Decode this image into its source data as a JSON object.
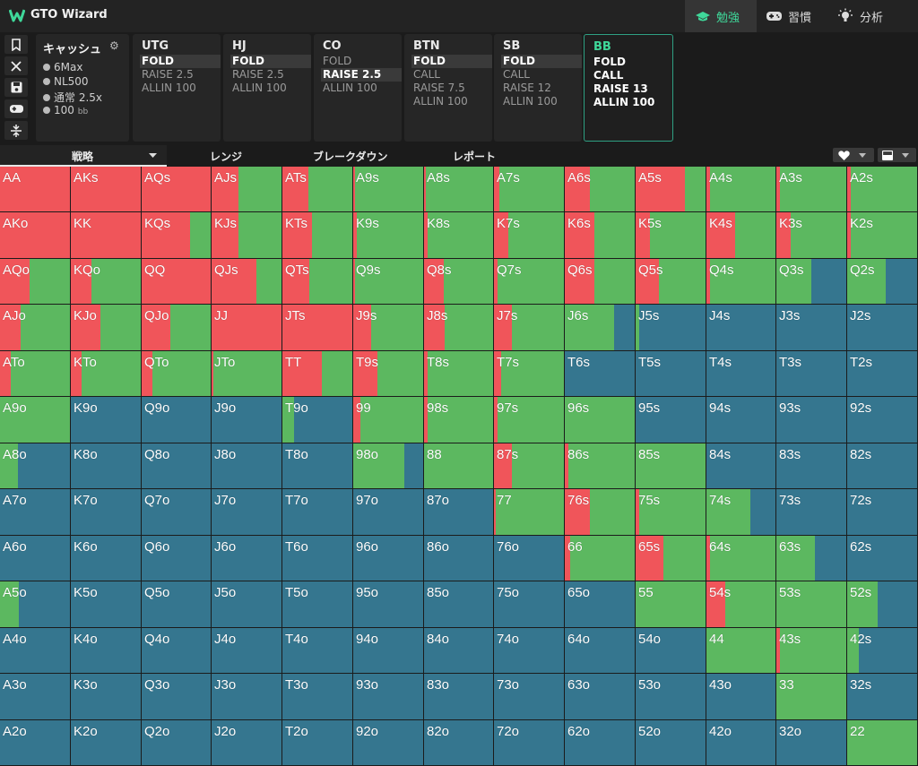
{
  "app": {
    "title": "GTO Wizard",
    "nav": [
      {
        "label": "勉強",
        "icon": "graduation-cap-icon"
      },
      {
        "label": "習慣",
        "icon": "gamepad-icon"
      },
      {
        "label": "分析",
        "icon": "lightbulb-icon"
      }
    ]
  },
  "tools": [
    "bookmark-icon",
    "close-icon",
    "save-icon",
    "gamepad-icon",
    "split-icon"
  ],
  "game": {
    "title": "キャッシュ",
    "rows": [
      {
        "text": "6Max",
        "suffix": ""
      },
      {
        "text": "NL500",
        "suffix": ""
      },
      {
        "text": "通常 2.5x",
        "suffix": ""
      },
      {
        "text": "100",
        "suffix": "bb"
      }
    ]
  },
  "positions": [
    {
      "name": "UTG",
      "actions": [
        "FOLD",
        "RAISE 2.5",
        "ALLIN 100"
      ],
      "selected": 0
    },
    {
      "name": "HJ",
      "actions": [
        "FOLD",
        "RAISE 2.5",
        "ALLIN 100"
      ],
      "selected": 0
    },
    {
      "name": "CO",
      "actions": [
        "FOLD",
        "RAISE 2.5",
        "ALLIN 100"
      ],
      "selected": 1
    },
    {
      "name": "BTN",
      "actions": [
        "FOLD",
        "CALL",
        "RAISE 7.5",
        "ALLIN 100"
      ],
      "selected": 0
    },
    {
      "name": "SB",
      "actions": [
        "FOLD",
        "CALL",
        "RAISE 12",
        "ALLIN 100"
      ],
      "selected": 0
    },
    {
      "name": "BB",
      "actions": [
        "FOLD",
        "CALL",
        "RAISE 13",
        "ALLIN 100"
      ],
      "selected": -1,
      "active": true
    }
  ],
  "tabs": {
    "strategy": "戦略",
    "range": "レンジ",
    "breakdown": "ブレークダウン",
    "report": "レポート"
  },
  "colors": {
    "fold": "#35768f",
    "call": "#5cb860",
    "raise": "#f0555a",
    "accent": "#3fd89a"
  },
  "grid": {
    "ranks": [
      "A",
      "K",
      "Q",
      "J",
      "T",
      "9",
      "8",
      "7",
      "6",
      "5",
      "4",
      "3",
      "2"
    ],
    "strategy_order": [
      "raise",
      "call",
      "fold"
    ],
    "strategy": [
      [
        [
          1,
          0
        ],
        [
          1,
          0
        ],
        [
          1,
          0
        ],
        [
          0.39,
          0.61
        ],
        [
          0.37,
          0.63
        ],
        [
          0.03,
          0.97
        ],
        [
          0.03,
          0.97
        ],
        [
          0.08,
          0.92
        ],
        [
          0.36,
          0.64
        ],
        [
          0.7,
          0.3
        ],
        [
          0.05,
          0.95
        ],
        [
          0.05,
          0.95
        ],
        [
          0.05,
          0.95
        ]
      ],
      [
        [
          1,
          0
        ],
        [
          1,
          0
        ],
        [
          0.7,
          0.3
        ],
        [
          0.39,
          0.61
        ],
        [
          0.42,
          0.58
        ],
        [
          0.05,
          0.95
        ],
        [
          0.05,
          0.95
        ],
        [
          0.21,
          0.79
        ],
        [
          0.42,
          0.58
        ],
        [
          0.2,
          0.8
        ],
        [
          0.42,
          0.58
        ],
        [
          0.2,
          0.8
        ],
        [
          0.05,
          0.95
        ]
      ],
      [
        [
          0.42,
          0.58
        ],
        [
          0.29,
          0.71
        ],
        [
          1,
          0
        ],
        [
          0.64,
          0.36
        ],
        [
          0.38,
          0.62
        ],
        [
          0.03,
          0.97
        ],
        [
          0.29,
          0.71
        ],
        [
          0.05,
          0.95
        ],
        [
          0.42,
          0.58
        ],
        [
          0.33,
          0.67
        ],
        [
          0.05,
          0.95
        ],
        [
          0,
          0.5
        ],
        [
          0,
          0.55
        ]
      ],
      [
        [
          0.29,
          0.71
        ],
        [
          0.42,
          0.58
        ],
        [
          0.42,
          0.58
        ],
        [
          1,
          0
        ],
        [
          1,
          0
        ],
        [
          0.25,
          0.75
        ],
        [
          0.3,
          0.7
        ],
        [
          0.25,
          0.75
        ],
        [
          0,
          0.7
        ],
        [
          0,
          0.05
        ],
        [
          0,
          0
        ],
        [
          0,
          0
        ],
        [
          0,
          0
        ]
      ],
      [
        [
          0.15,
          0.85
        ],
        [
          0.15,
          0.85
        ],
        [
          0.16,
          0.84
        ],
        [
          0.03,
          0.97
        ],
        [
          0.56,
          0.44
        ],
        [
          0.35,
          0.65
        ],
        [
          0.05,
          0.95
        ],
        [
          0.1,
          0.9
        ],
        [
          0,
          0
        ],
        [
          0,
          0
        ],
        [
          0,
          0
        ],
        [
          0,
          0
        ],
        [
          0,
          0
        ]
      ],
      [
        [
          0,
          1
        ],
        [
          0,
          0
        ],
        [
          0,
          0
        ],
        [
          0,
          0
        ],
        [
          0,
          0.17
        ],
        [
          0.1,
          0.9
        ],
        [
          0.05,
          0.95
        ],
        [
          0.05,
          0.95
        ],
        [
          0,
          1
        ],
        [
          0,
          0
        ],
        [
          0,
          0
        ],
        [
          0,
          0
        ],
        [
          0,
          0
        ]
      ],
      [
        [
          0,
          0.25
        ],
        [
          0,
          0
        ],
        [
          0,
          0
        ],
        [
          0,
          0
        ],
        [
          0,
          0
        ],
        [
          0,
          0.73
        ],
        [
          0,
          1
        ],
        [
          0.25,
          0.75
        ],
        [
          0.05,
          0.95
        ],
        [
          0,
          1
        ],
        [
          0,
          0
        ],
        [
          0,
          0
        ],
        [
          0,
          0
        ]
      ],
      [
        [
          0,
          0
        ],
        [
          0,
          0
        ],
        [
          0,
          0
        ],
        [
          0,
          0
        ],
        [
          0,
          0
        ],
        [
          0,
          0
        ],
        [
          0,
          0
        ],
        [
          0.03,
          0.97
        ],
        [
          0.36,
          0.64
        ],
        [
          0.05,
          0.95
        ],
        [
          0,
          0.63
        ],
        [
          0,
          0
        ],
        [
          0,
          0
        ]
      ],
      [
        [
          0,
          0
        ],
        [
          0,
          0
        ],
        [
          0,
          0
        ],
        [
          0,
          0
        ],
        [
          0,
          0
        ],
        [
          0,
          0
        ],
        [
          0,
          0
        ],
        [
          0,
          0
        ],
        [
          0.08,
          0.92
        ],
        [
          0.4,
          0.6
        ],
        [
          0.05,
          0.95
        ],
        [
          0,
          0.55
        ],
        [
          0,
          0
        ]
      ],
      [
        [
          0,
          0.27
        ],
        [
          0,
          0
        ],
        [
          0,
          0
        ],
        [
          0,
          0
        ],
        [
          0,
          0
        ],
        [
          0,
          0
        ],
        [
          0,
          0
        ],
        [
          0,
          0
        ],
        [
          0,
          0
        ],
        [
          0,
          1
        ],
        [
          0.27,
          0.73
        ],
        [
          0,
          1
        ],
        [
          0,
          0.44
        ]
      ],
      [
        [
          0,
          0
        ],
        [
          0,
          0
        ],
        [
          0,
          0
        ],
        [
          0,
          0
        ],
        [
          0,
          0
        ],
        [
          0,
          0
        ],
        [
          0,
          0
        ],
        [
          0,
          0
        ],
        [
          0,
          0
        ],
        [
          0,
          0
        ],
        [
          0,
          1
        ],
        [
          0.05,
          0.95
        ],
        [
          0,
          0.17
        ]
      ],
      [
        [
          0,
          0
        ],
        [
          0,
          0
        ],
        [
          0,
          0
        ],
        [
          0,
          0
        ],
        [
          0,
          0
        ],
        [
          0,
          0
        ],
        [
          0,
          0
        ],
        [
          0,
          0
        ],
        [
          0,
          0
        ],
        [
          0,
          0
        ],
        [
          0,
          0
        ],
        [
          0,
          1
        ],
        [
          0,
          0
        ]
      ],
      [
        [
          0,
          0
        ],
        [
          0,
          0
        ],
        [
          0,
          0
        ],
        [
          0,
          0
        ],
        [
          0,
          0
        ],
        [
          0,
          0
        ],
        [
          0,
          0
        ],
        [
          0,
          0
        ],
        [
          0,
          0
        ],
        [
          0,
          0
        ],
        [
          0,
          0
        ],
        [
          0,
          0
        ],
        [
          0,
          1
        ]
      ]
    ]
  }
}
